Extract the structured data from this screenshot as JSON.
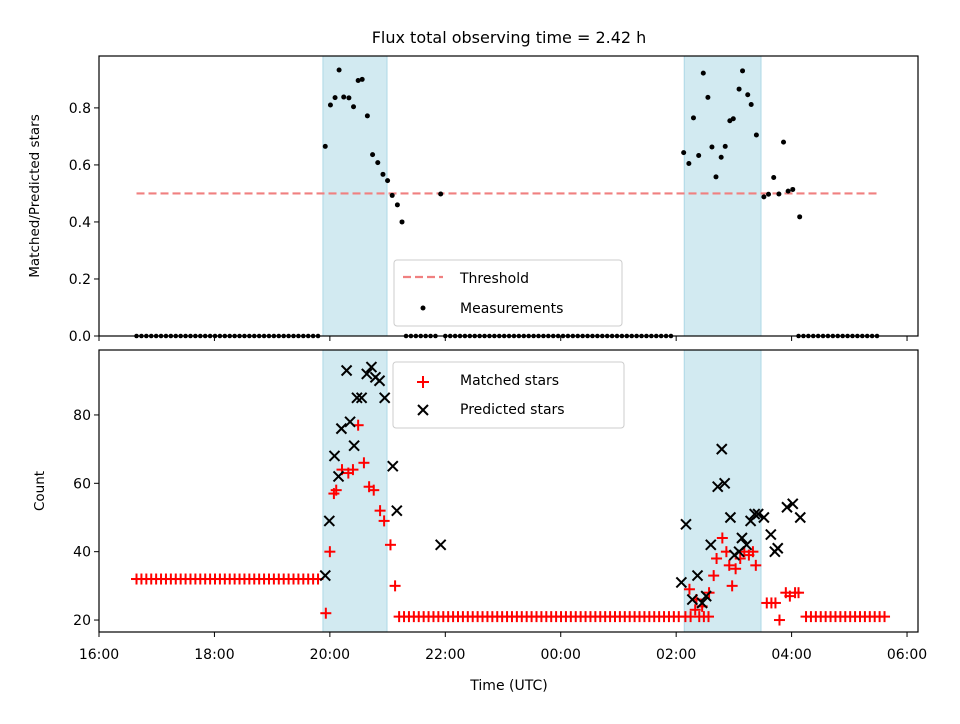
{
  "chart_data": [
    {
      "type": "scatter",
      "panel": "top",
      "title": "Flux total observing time = 2.42 h",
      "xlabel": "",
      "ylabel": "Matched/Predicted stars",
      "ylim": [
        0.0,
        0.982
      ],
      "yticks": [
        0.0,
        0.2,
        0.4,
        0.6,
        0.8
      ],
      "ytick_labels": [
        "0.0",
        "0.2",
        "0.4",
        "0.6",
        "0.8"
      ],
      "xlim_hours_since_1600": [
        0.0,
        14.19
      ],
      "xticks_hours": [
        0,
        2,
        4,
        6,
        8,
        10,
        12,
        14
      ],
      "xtick_labels_visible": false,
      "threshold": {
        "label": "Threshold",
        "value": 0.5,
        "x_range_hours": [
          0.65,
          13.5
        ],
        "color": "#f08080",
        "style": "dashed"
      },
      "shaded_intervals_hours": [
        [
          3.88,
          4.99
        ],
        [
          10.14,
          11.47
        ]
      ],
      "shade_color": "#add8e6",
      "series": [
        {
          "name": "Measurements",
          "marker": "dot",
          "color": "#000000",
          "points": [
            [
              3.92,
              0.665
            ],
            [
              4.01,
              0.81
            ],
            [
              4.09,
              0.836
            ],
            [
              4.16,
              0.933
            ],
            [
              4.24,
              0.838
            ],
            [
              4.33,
              0.835
            ],
            [
              4.41,
              0.804
            ],
            [
              4.49,
              0.896
            ],
            [
              4.56,
              0.9
            ],
            [
              4.65,
              0.772
            ],
            [
              4.74,
              0.636
            ],
            [
              4.83,
              0.608
            ],
            [
              4.92,
              0.567
            ],
            [
              5.0,
              0.545
            ],
            [
              5.08,
              0.493
            ],
            [
              5.17,
              0.46
            ],
            [
              5.25,
              0.4
            ],
            [
              5.92,
              0.498
            ],
            [
              10.13,
              0.643
            ],
            [
              10.22,
              0.605
            ],
            [
              10.3,
              0.765
            ],
            [
              10.39,
              0.633
            ],
            [
              10.47,
              0.922
            ],
            [
              10.55,
              0.837
            ],
            [
              10.62,
              0.663
            ],
            [
              10.69,
              0.558
            ],
            [
              10.78,
              0.627
            ],
            [
              10.85,
              0.665
            ],
            [
              10.93,
              0.755
            ],
            [
              10.99,
              0.762
            ],
            [
              11.09,
              0.866
            ],
            [
              11.15,
              0.93
            ],
            [
              11.24,
              0.846
            ],
            [
              11.3,
              0.812
            ],
            [
              11.39,
              0.705
            ],
            [
              11.52,
              0.488
            ],
            [
              11.6,
              0.497
            ],
            [
              11.69,
              0.556
            ],
            [
              11.78,
              0.498
            ],
            [
              11.86,
              0.68
            ],
            [
              11.94,
              0.508
            ],
            [
              12.02,
              0.514
            ],
            [
              12.14,
              0.418
            ]
          ],
          "zero_points_hours": [
            [
              0.65,
              3.85
            ],
            [
              5.32,
              5.85
            ],
            [
              6.0,
              9.98
            ],
            [
              12.12,
              13.48
            ]
          ],
          "zero_spacing_hours": 0.085
        }
      ],
      "legend": {
        "position": "lower-center",
        "entries": [
          "Threshold",
          "Measurements"
        ]
      }
    },
    {
      "type": "scatter",
      "panel": "bottom",
      "title": "",
      "xlabel": "Time (UTC)",
      "ylabel": "Count",
      "ylim": [
        16.5,
        99
      ],
      "yticks": [
        20,
        40,
        60,
        80
      ],
      "ytick_labels": [
        "20",
        "40",
        "60",
        "80"
      ],
      "xlim_hours_since_1600": [
        0.0,
        14.19
      ],
      "xticks_hours": [
        0,
        2,
        4,
        6,
        8,
        10,
        12,
        14
      ],
      "xtick_labels": [
        "16:00",
        "18:00",
        "20:00",
        "22:00",
        "00:00",
        "02:00",
        "04:00",
        "06:00"
      ],
      "shaded_intervals_hours": [
        [
          3.88,
          4.99
        ],
        [
          10.14,
          11.47
        ]
      ],
      "shade_color": "#add8e6",
      "series": [
        {
          "name": "Matched stars",
          "marker": "plus",
          "color": "#ff0000",
          "points": [
            [
              3.93,
              22
            ],
            [
              4.0,
              40
            ],
            [
              4.07,
              57
            ],
            [
              4.11,
              58
            ],
            [
              4.21,
              64
            ],
            [
              4.32,
              63
            ],
            [
              4.4,
              64
            ],
            [
              4.49,
              77
            ],
            [
              4.59,
              66
            ],
            [
              4.68,
              59
            ],
            [
              4.76,
              58
            ],
            [
              4.87,
              52
            ],
            [
              4.94,
              49
            ],
            [
              5.05,
              42
            ],
            [
              5.13,
              30
            ],
            [
              10.16,
              21
            ],
            [
              10.25,
              21
            ],
            [
              10.33,
              23
            ],
            [
              10.4,
              21
            ],
            [
              10.48,
              21
            ],
            [
              10.56,
              21
            ],
            [
              10.23,
              29
            ],
            [
              10.35,
              26
            ],
            [
              10.45,
              24
            ],
            [
              10.57,
              28
            ],
            [
              10.65,
              33
            ],
            [
              10.7,
              38
            ],
            [
              10.8,
              44
            ],
            [
              10.87,
              40
            ],
            [
              10.92,
              36
            ],
            [
              10.97,
              30
            ],
            [
              11.03,
              35
            ],
            [
              11.11,
              38
            ],
            [
              11.18,
              40
            ],
            [
              11.26,
              39
            ],
            [
              11.33,
              40
            ],
            [
              11.38,
              36
            ],
            [
              11.57,
              25
            ],
            [
              11.65,
              25
            ],
            [
              11.72,
              25
            ],
            [
              11.79,
              20
            ],
            [
              11.9,
              28
            ],
            [
              11.97,
              27
            ],
            [
              12.06,
              28
            ],
            [
              12.12,
              28
            ]
          ],
          "baseline_runs": [
            {
              "value": 32,
              "x_range_hours": [
                0.65,
                3.85
              ]
            },
            {
              "value": 21,
              "x_range_hours": [
                5.2,
                10.1
              ]
            },
            {
              "value": 21,
              "x_range_hours": [
                12.25,
                13.62
              ]
            }
          ],
          "baseline_spacing_hours": 0.085
        },
        {
          "name": "Predicted stars",
          "marker": "x",
          "color": "#000000",
          "points": [
            [
              3.92,
              33
            ],
            [
              3.99,
              49
            ],
            [
              4.08,
              68
            ],
            [
              4.15,
              62
            ],
            [
              4.2,
              76
            ],
            [
              4.29,
              93
            ],
            [
              4.35,
              78
            ],
            [
              4.42,
              71
            ],
            [
              4.47,
              85
            ],
            [
              4.55,
              85
            ],
            [
              4.64,
              92
            ],
            [
              4.72,
              94
            ],
            [
              4.79,
              91
            ],
            [
              4.86,
              90
            ],
            [
              4.95,
              85
            ],
            [
              5.09,
              65
            ],
            [
              5.16,
              52
            ],
            [
              5.92,
              42
            ],
            [
              10.09,
              31
            ],
            [
              10.17,
              48
            ],
            [
              10.28,
              26
            ],
            [
              10.37,
              33
            ],
            [
              10.45,
              25
            ],
            [
              10.52,
              27
            ],
            [
              10.6,
              42
            ],
            [
              10.72,
              59
            ],
            [
              10.79,
              70
            ],
            [
              10.84,
              60
            ],
            [
              10.94,
              50
            ],
            [
              11.01,
              39
            ],
            [
              11.09,
              40
            ],
            [
              11.14,
              44
            ],
            [
              11.22,
              42
            ],
            [
              11.29,
              49
            ],
            [
              11.36,
              51
            ],
            [
              11.42,
              51
            ],
            [
              11.52,
              50
            ],
            [
              11.64,
              45
            ],
            [
              11.71,
              40
            ],
            [
              11.76,
              41
            ],
            [
              11.92,
              53
            ],
            [
              12.02,
              54
            ],
            [
              12.15,
              50
            ]
          ]
        }
      ],
      "legend": {
        "position": "upper-center",
        "entries": [
          "Matched stars",
          "Predicted stars"
        ]
      }
    }
  ]
}
